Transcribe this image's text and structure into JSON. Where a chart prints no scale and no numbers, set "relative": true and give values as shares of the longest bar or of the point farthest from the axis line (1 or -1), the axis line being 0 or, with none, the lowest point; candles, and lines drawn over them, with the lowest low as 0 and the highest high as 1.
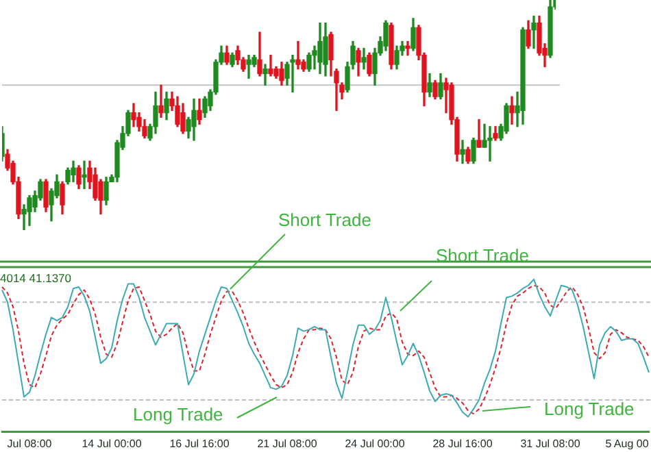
{
  "chart_data": [
    {
      "type": "candlestick",
      "relative": true,
      "tick_labels": false,
      "categories": [
        null,
        null,
        null,
        null,
        null,
        null,
        null,
        null,
        null,
        null,
        null,
        null,
        null,
        null,
        null,
        null,
        null,
        null,
        null,
        null,
        null,
        null,
        null,
        null,
        null,
        null,
        null,
        null,
        null,
        null,
        null,
        null,
        null,
        null,
        null,
        null,
        null,
        null,
        null,
        null,
        null,
        null,
        null,
        null,
        null,
        null,
        null,
        null,
        null,
        null,
        null,
        null,
        null,
        null,
        null,
        null,
        null,
        null,
        null,
        null,
        null,
        null,
        null,
        null,
        null,
        null,
        null,
        null,
        null,
        null,
        null,
        null,
        null,
        null,
        null,
        null,
        null,
        null,
        null,
        null,
        null,
        null,
        null,
        null,
        null,
        null,
        null,
        null,
        null,
        null,
        null,
        null,
        null,
        null,
        null,
        null,
        null,
        null,
        null,
        null,
        null,
        null
      ],
      "ohlc": [
        [
          0.32,
          0.45,
          0.3,
          0.42
        ],
        [
          0.33,
          0.35,
          0.26,
          0.27
        ],
        [
          0.29,
          0.3,
          0.2,
          0.21
        ],
        [
          0.21,
          0.23,
          0.05,
          0.07
        ],
        [
          0.07,
          0.11,
          0,
          0.09
        ],
        [
          0.08,
          0.15,
          0.02,
          0.14
        ],
        [
          0.1,
          0.17,
          0.08,
          0.15
        ],
        [
          0.14,
          0.22,
          0.13,
          0.21
        ],
        [
          0.21,
          0.22,
          0.08,
          0.1
        ],
        [
          0.11,
          0.18,
          0.04,
          0.17
        ],
        [
          0.15,
          0.24,
          0.14,
          0.21
        ],
        [
          0.2,
          0.21,
          0.07,
          0.11
        ],
        [
          0.21,
          0.27,
          0.2,
          0.26
        ],
        [
          0.24,
          0.3,
          0.21,
          0.27
        ],
        [
          0.27,
          0.28,
          0.18,
          0.2
        ],
        [
          0.23,
          0.3,
          0.18,
          0.24
        ],
        [
          0.27,
          0.3,
          0.18,
          0.21
        ],
        [
          0.24,
          0.27,
          0.13,
          0.14
        ],
        [
          0.21,
          0.22,
          0.07,
          0.13
        ],
        [
          0.13,
          0.23,
          0.11,
          0.21
        ],
        [
          0.21,
          0.24,
          0.21,
          0.23
        ],
        [
          0.23,
          0.39,
          0.21,
          0.38
        ],
        [
          0.36,
          0.45,
          0.35,
          0.42
        ],
        [
          0.42,
          0.52,
          0.41,
          0.51
        ],
        [
          0.51,
          0.55,
          0.45,
          0.48
        ],
        [
          0.49,
          0.51,
          0.43,
          0.45
        ],
        [
          0.45,
          0.48,
          0.4,
          0.41
        ],
        [
          0.4,
          0.46,
          0.39,
          0.45
        ],
        [
          0.45,
          0.6,
          0.42,
          0.54
        ],
        [
          0.54,
          0.63,
          0.49,
          0.51
        ],
        [
          0.51,
          0.6,
          0.48,
          0.57
        ],
        [
          0.57,
          0.6,
          0.52,
          0.54
        ],
        [
          0.54,
          0.58,
          0.45,
          0.46
        ],
        [
          0.51,
          0.55,
          0.42,
          0.43
        ],
        [
          0.43,
          0.49,
          0.4,
          0.48
        ],
        [
          0.45,
          0.57,
          0.39,
          0.52
        ],
        [
          0.52,
          0.57,
          0.46,
          0.48
        ],
        [
          0.51,
          0.58,
          0.49,
          0.57
        ],
        [
          0.54,
          0.61,
          0.52,
          0.6
        ],
        [
          0.6,
          0.74,
          0.59,
          0.73
        ],
        [
          0.73,
          0.8,
          0.72,
          0.77
        ],
        [
          0.77,
          0.8,
          0.72,
          0.73
        ],
        [
          0.72,
          0.77,
          0.71,
          0.76
        ],
        [
          0.78,
          0.8,
          0.72,
          0.74
        ],
        [
          0.74,
          0.75,
          0.69,
          0.7
        ],
        [
          0.72,
          0.76,
          0.66,
          0.74
        ],
        [
          0.72,
          0.76,
          0.71,
          0.75
        ],
        [
          0.74,
          0.86,
          0.67,
          0.68
        ],
        [
          0.68,
          0.72,
          0.63,
          0.7
        ],
        [
          0.7,
          0.76,
          0.67,
          0.68
        ],
        [
          0.7,
          0.71,
          0.66,
          0.67
        ],
        [
          0.7,
          0.73,
          0.63,
          0.65
        ],
        [
          0.66,
          0.73,
          0.63,
          0.72
        ],
        [
          0.73,
          0.76,
          0.6,
          0.74
        ],
        [
          0.74,
          0.82,
          0.7,
          0.72
        ],
        [
          0.73,
          0.74,
          0.69,
          0.7
        ],
        [
          0.7,
          0.77,
          0.69,
          0.76
        ],
        [
          0.76,
          0.8,
          0.7,
          0.78
        ],
        [
          0.73,
          0.9,
          0.68,
          0.82
        ],
        [
          0.72,
          0.9,
          0.67,
          0.84
        ],
        [
          0.85,
          0.86,
          0.67,
          0.74
        ],
        [
          0.69,
          0.7,
          0.52,
          0.64
        ],
        [
          0.63,
          0.64,
          0.57,
          0.6
        ],
        [
          0.61,
          0.73,
          0.6,
          0.71
        ],
        [
          0.72,
          0.82,
          0.7,
          0.8
        ],
        [
          0.78,
          0.79,
          0.67,
          0.73
        ],
        [
          0.73,
          0.79,
          0.7,
          0.75
        ],
        [
          0.76,
          0.77,
          0.67,
          0.68
        ],
        [
          0.68,
          0.79,
          0.63,
          0.77
        ],
        [
          0.77,
          0.84,
          0.76,
          0.82
        ],
        [
          0.8,
          0.91,
          0.78,
          0.9
        ],
        [
          0.89,
          0.9,
          0.7,
          0.72
        ],
        [
          0.72,
          0.8,
          0.7,
          0.78
        ],
        [
          0.78,
          0.82,
          0.76,
          0.8
        ],
        [
          0.8,
          0.82,
          0.76,
          0.79
        ],
        [
          0.79,
          0.92,
          0.78,
          0.88
        ],
        [
          0.88,
          0.89,
          0.74,
          0.76
        ],
        [
          0.76,
          0.77,
          0.54,
          0.6
        ],
        [
          0.6,
          0.68,
          0.58,
          0.64
        ],
        [
          0.64,
          0.65,
          0.57,
          0.58
        ],
        [
          0.58,
          0.68,
          0.57,
          0.64
        ],
        [
          0.64,
          0.66,
          0.51,
          0.61
        ],
        [
          0.63,
          0.64,
          0.46,
          0.48
        ],
        [
          0.48,
          0.49,
          0.3,
          0.33
        ],
        [
          0.33,
          0.39,
          0.29,
          0.35
        ],
        [
          0.35,
          0.36,
          0.29,
          0.3
        ],
        [
          0.3,
          0.4,
          0.29,
          0.39
        ],
        [
          0.39,
          0.48,
          0.36,
          0.36
        ],
        [
          0.36,
          0.46,
          0.36,
          0.39
        ],
        [
          0.39,
          0.45,
          0.3,
          0.4
        ],
        [
          0.42,
          0.45,
          0.39,
          0.4
        ],
        [
          0.4,
          0.46,
          0.39,
          0.45
        ],
        [
          0.43,
          0.55,
          0.42,
          0.54
        ],
        [
          0.54,
          0.58,
          0.46,
          0.51
        ],
        [
          0.51,
          0.6,
          0.45,
          0.54
        ],
        [
          0.52,
          0.88,
          0.46,
          0.87
        ],
        [
          0.87,
          0.91,
          0.79,
          0.8
        ],
        [
          0.87,
          0.93,
          0.79,
          0.9
        ],
        [
          0.9,
          0.93,
          0.76,
          0.77
        ],
        [
          0.79,
          0.81,
          0.71,
          0.76
        ],
        [
          0.76,
          1,
          0.75,
          0.97
        ],
        [
          0.97,
          1,
          0.96,
          1
        ]
      ],
      "ref_lines": [
        {
          "axis": "y",
          "value": 0.63,
          "color": "#c4c4c4"
        }
      ]
    },
    {
      "type": "line",
      "relative": true,
      "tick_labels": "x",
      "marker": "none",
      "categories": [
        null,
        null,
        null,
        null,
        null,
        "Jul 08:00",
        null,
        null,
        null,
        null,
        null,
        null,
        null,
        null,
        null,
        null,
        null,
        null,
        null,
        null,
        "14 Jul 00:00",
        null,
        null,
        null,
        null,
        null,
        null,
        null,
        null,
        null,
        null,
        null,
        null,
        null,
        null,
        null,
        "16 Jul 16:00",
        null,
        null,
        null,
        null,
        null,
        null,
        null,
        null,
        null,
        null,
        null,
        null,
        null,
        null,
        null,
        "21 Jul 08:00",
        null,
        null,
        null,
        null,
        null,
        null,
        null,
        null,
        null,
        null,
        null,
        null,
        null,
        null,
        null,
        "24 Jul 00:00",
        null,
        null,
        null,
        null,
        null,
        null,
        null,
        null,
        null,
        null,
        null,
        null,
        null,
        null,
        null,
        "28 Jul 16:00",
        null,
        null,
        null,
        null,
        null,
        null,
        null,
        null,
        null,
        null,
        null,
        null,
        null,
        null,
        null,
        "31 Jul 08:00",
        null,
        null,
        null,
        null,
        null,
        null,
        null,
        null,
        null,
        null,
        null,
        null,
        null,
        "5 Aug 00",
        null,
        null,
        null,
        null
      ],
      "series": [
        {
          "color": "#3aaab5",
          "line_style": "solid",
          "values": [
            0.93,
            0.85,
            0.67,
            0.45,
            0.23,
            0.26,
            0.37,
            0.51,
            0.64,
            0.75,
            0.73,
            0.75,
            0.82,
            0.94,
            0.95,
            0.89,
            0.79,
            0.62,
            0.45,
            0.48,
            0.55,
            0.73,
            0.87,
            0.97,
            0.97,
            0.88,
            0.75,
            0.66,
            0.57,
            0.64,
            0.71,
            0.71,
            0.71,
            0.51,
            0.31,
            0.38,
            0.53,
            0.64,
            0.75,
            0.86,
            0.95,
            0.94,
            0.86,
            0.78,
            0.69,
            0.58,
            0.51,
            0.45,
            0.37,
            0.29,
            0.28,
            0.3,
            0.37,
            0.5,
            0.68,
            0.66,
            0.67,
            0.69,
            0.67,
            0.67,
            0.49,
            0.32,
            0.22,
            0.39,
            0.57,
            0.7,
            0.7,
            0.64,
            0.67,
            0.73,
            0.88,
            0.75,
            0.59,
            0.44,
            0.5,
            0.58,
            0.5,
            0.39,
            0.27,
            0.2,
            0.24,
            0.25,
            0.24,
            0.19,
            0.13,
            0.1,
            0.15,
            0.21,
            0.32,
            0.41,
            0.53,
            0.71,
            0.88,
            0.89,
            0.91,
            0.94,
            0.96,
            1,
            0.9,
            0.82,
            0.76,
            0.86,
            0.96,
            0.95,
            0.93,
            0.83,
            0.69,
            0.52,
            0.35,
            0.57,
            0.65,
            0.69,
            0.66,
            0.6,
            0.61,
            0.61,
            0.58,
            0.49,
            0.39
          ]
        },
        {
          "color": "#e3202a",
          "line_style": "dashed",
          "values": [
            0.95,
            0.91,
            0.82,
            0.66,
            0.45,
            0.31,
            0.29,
            0.38,
            0.5,
            0.63,
            0.7,
            0.74,
            0.77,
            0.84,
            0.9,
            0.93,
            0.87,
            0.77,
            0.62,
            0.51,
            0.49,
            0.58,
            0.72,
            0.86,
            0.94,
            0.95,
            0.86,
            0.77,
            0.66,
            0.62,
            0.64,
            0.68,
            0.71,
            0.65,
            0.51,
            0.4,
            0.4,
            0.51,
            0.64,
            0.75,
            0.86,
            0.92,
            0.92,
            0.86,
            0.78,
            0.68,
            0.59,
            0.51,
            0.44,
            0.37,
            0.31,
            0.29,
            0.31,
            0.39,
            0.52,
            0.61,
            0.67,
            0.67,
            0.68,
            0.67,
            0.61,
            0.49,
            0.34,
            0.31,
            0.39,
            0.56,
            0.66,
            0.68,
            0.67,
            0.67,
            0.76,
            0.78,
            0.74,
            0.59,
            0.51,
            0.5,
            0.53,
            0.49,
            0.39,
            0.29,
            0.23,
            0.23,
            0.24,
            0.22,
            0.19,
            0.14,
            0.12,
            0.15,
            0.22,
            0.31,
            0.42,
            0.55,
            0.71,
            0.83,
            0.89,
            0.91,
            0.94,
            0.96,
            0.95,
            0.91,
            0.83,
            0.81,
            0.86,
            0.92,
            0.95,
            0.9,
            0.82,
            0.68,
            0.52,
            0.48,
            0.52,
            0.64,
            0.67,
            0.65,
            0.62,
            0.61,
            0.6,
            0.56,
            0.49
          ]
        }
      ],
      "ref_lines": [
        {
          "axis": "y",
          "value": 0.85,
          "color": "#bdbdbd",
          "line_style": "dashed"
        },
        {
          "axis": "y",
          "value": 0.21,
          "color": "#bdbdbd",
          "line_style": "dashed"
        }
      ],
      "annotations": [
        "Short Trade",
        "Short Trade",
        "Long Trade",
        "Long Trade",
        "4014 41.1370"
      ]
    }
  ]
}
